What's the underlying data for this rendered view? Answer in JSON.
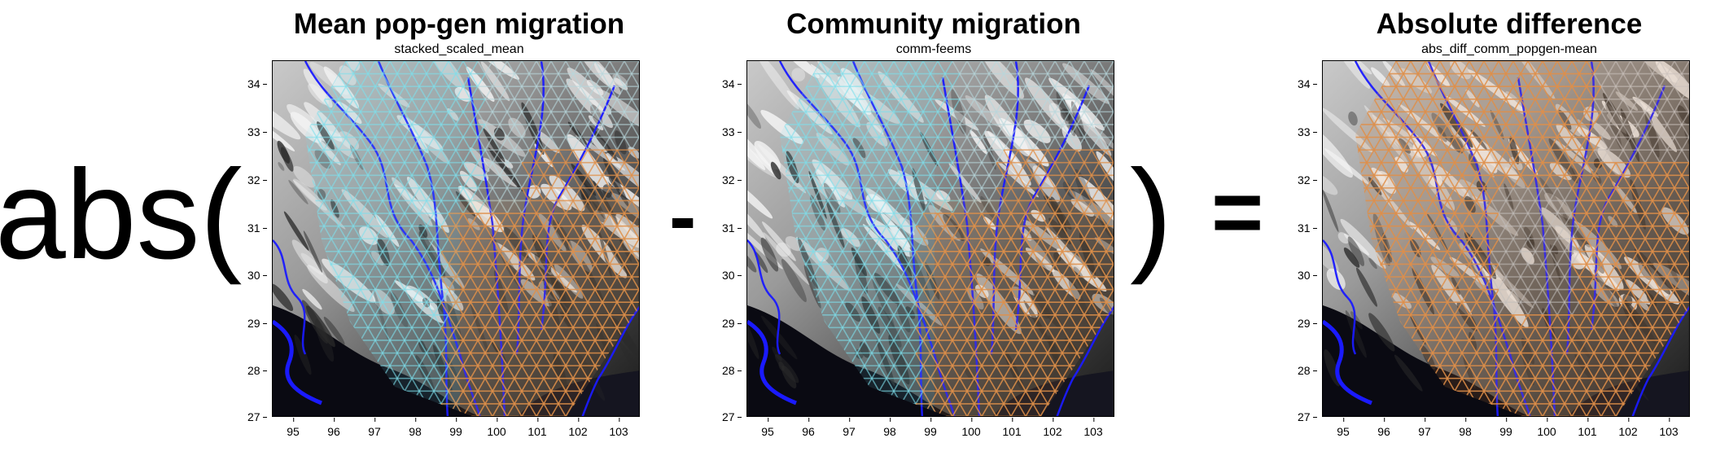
{
  "operators": {
    "abs_open": "abs(",
    "minus": "-",
    "close_paren": ")",
    "equals": "="
  },
  "panels": [
    {
      "title": "Mean pop-gen migration",
      "subtitle": "stacked_scaled_mean",
      "grid_tint": "cyan-west-orange-east",
      "x_ticks": [
        "95",
        "96",
        "97",
        "98",
        "99",
        "100",
        "101",
        "102",
        "103"
      ],
      "y_ticks": [
        "34",
        "33",
        "32",
        "31",
        "30",
        "29",
        "28",
        "27"
      ]
    },
    {
      "title": "Community migration",
      "subtitle": "comm-feems",
      "grid_tint": "cyan-west-orange-east",
      "x_ticks": [
        "95",
        "96",
        "97",
        "98",
        "99",
        "100",
        "101",
        "102",
        "103"
      ],
      "y_ticks": [
        "34",
        "33",
        "32",
        "31",
        "30",
        "29",
        "28",
        "27"
      ]
    },
    {
      "title": "Absolute difference",
      "subtitle": "abs_diff_comm_popgen-mean",
      "grid_tint": "mostly-orange",
      "x_ticks": [
        "95",
        "96",
        "97",
        "98",
        "99",
        "100",
        "101",
        "102",
        "103"
      ],
      "y_ticks": [
        "34",
        "33",
        "32",
        "31",
        "30",
        "29",
        "28",
        "27"
      ]
    }
  ],
  "colors": {
    "river": "#1a1aff",
    "cyan": "#7fe0ec",
    "orange": "#e0904a",
    "land_dark": "#2a2a2a",
    "land_light": "#f4f4f4",
    "lowland": "#0a0a12"
  }
}
